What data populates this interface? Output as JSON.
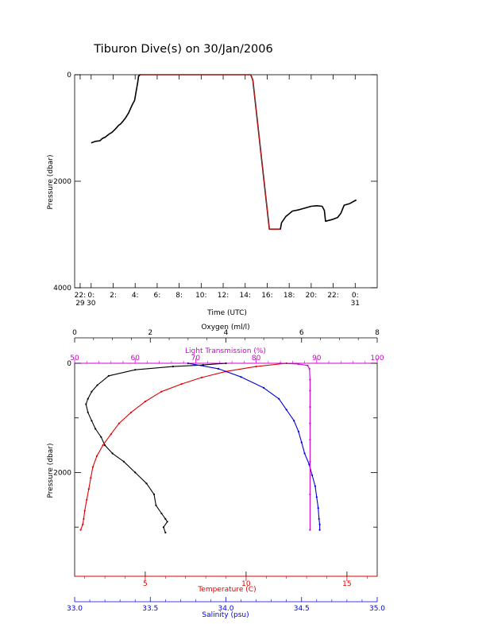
{
  "page": {
    "title": "Tiburon Dive(s) on 30/Jan/2006"
  },
  "colors": {
    "black": "#000000",
    "red": "#e00000",
    "blue": "#0000dd",
    "magenta": "#d000d0",
    "dive_red": "#d02020"
  },
  "chart_data": [
    {
      "type": "line",
      "title": "Tiburon Dive(s) on 30/Jan/2006",
      "xlabel": "Time (UTC)",
      "ylabel": "Pressure (dbar)",
      "xlim": [
        -1.5,
        26.0
      ],
      "ylim": [
        4000,
        0
      ],
      "y_reversed": true,
      "x_ticks": [
        {
          "x": -1,
          "label1": "22:",
          "label2": "29"
        },
        {
          "x": 0,
          "label1": "0:",
          "label2": "30"
        },
        {
          "x": 2,
          "label1": "2:",
          "label2": ""
        },
        {
          "x": 4,
          "label1": "4:",
          "label2": ""
        },
        {
          "x": 6,
          "label1": "6:",
          "label2": ""
        },
        {
          "x": 8,
          "label1": "8:",
          "label2": ""
        },
        {
          "x": 10,
          "label1": "10:",
          "label2": ""
        },
        {
          "x": 12,
          "label1": "12:",
          "label2": ""
        },
        {
          "x": 14,
          "label1": "14:",
          "label2": ""
        },
        {
          "x": 16,
          "label1": "16:",
          "label2": ""
        },
        {
          "x": 18,
          "label1": "18:",
          "label2": ""
        },
        {
          "x": 20,
          "label1": "20:",
          "label2": ""
        },
        {
          "x": 22,
          "label1": "22:",
          "label2": ""
        },
        {
          "x": 24,
          "label1": "0:",
          "label2": "31"
        }
      ],
      "y_ticks": [
        0,
        2000,
        4000
      ],
      "series": [
        {
          "color": "#000000",
          "x": [
            0.0,
            0.4,
            0.8,
            1.0,
            1.3,
            1.6,
            1.9,
            2.2,
            2.5,
            2.7,
            2.9,
            3.1,
            3.4,
            3.7,
            3.95,
            4.1,
            4.25,
            4.3,
            4.45,
            14.5,
            14.7,
            16.2,
            17.2,
            17.3,
            17.7,
            18.0,
            18.3,
            18.8,
            19.5,
            20.0,
            20.5,
            21.0,
            21.2,
            21.3,
            21.9,
            22.4,
            22.7,
            23.0,
            23.5,
            24.1
          ],
          "y": [
            1280,
            1250,
            1240,
            1200,
            1170,
            1120,
            1080,
            1020,
            950,
            920,
            870,
            820,
            720,
            580,
            480,
            300,
            120,
            30,
            0,
            0,
            100,
            2900,
            2900,
            2780,
            2660,
            2610,
            2560,
            2540,
            2500,
            2470,
            2460,
            2470,
            2550,
            2750,
            2720,
            2680,
            2600,
            2450,
            2420,
            2350
          ]
        },
        {
          "color": "#d02020",
          "x": [
            4.45,
            14.5,
            14.7,
            16.2,
            17.2
          ],
          "y": [
            0,
            0,
            100,
            2900,
            2900
          ]
        }
      ]
    },
    {
      "type": "scatter",
      "ylabel": "Pressure (dbar)",
      "ylim": [
        3900,
        0
      ],
      "y_reversed": true,
      "y_ticks": [
        0,
        2000
      ],
      "axes": {
        "oxygen": {
          "label": "Oxygen (ml/l)",
          "range": [
            0,
            8
          ],
          "ticks": [
            0,
            2,
            4,
            6,
            8
          ],
          "color": "#000000",
          "position": "top-outer"
        },
        "light": {
          "label": "Light Transmission (%)",
          "range": [
            50,
            100
          ],
          "ticks": [
            50,
            60,
            70,
            80,
            90,
            100
          ],
          "color": "#d000d0",
          "position": "top-inner"
        },
        "temperature": {
          "label": "Temperature (C)",
          "range": [
            1.5,
            16.5
          ],
          "ticks": [
            5,
            10,
            15
          ],
          "color": "#e00000",
          "position": "bottom-inner"
        },
        "salinity": {
          "label": "Salinity (psu)",
          "range": [
            33.0,
            35.0
          ],
          "ticks": [
            "33.0",
            "33.5",
            "34.0",
            "34.5",
            "35.0"
          ],
          "color": "#0000dd",
          "position": "bottom-outer"
        }
      },
      "series": [
        {
          "axis": "oxygen",
          "color": "#000000",
          "x": [
            4.0,
            3.4,
            2.6,
            1.6,
            0.9,
            0.6,
            0.45,
            0.35,
            0.3,
            0.35,
            0.45,
            0.55,
            0.7,
            0.8,
            1.0,
            1.3,
            1.6,
            1.9,
            2.1,
            2.15,
            2.3,
            2.4,
            2.45,
            2.35,
            2.4
          ],
          "y": [
            0,
            30,
            60,
            120,
            230,
            400,
            520,
            650,
            750,
            900,
            1050,
            1200,
            1350,
            1500,
            1650,
            1800,
            2000,
            2200,
            2400,
            2600,
            2750,
            2850,
            2900,
            3000,
            3100
          ]
        },
        {
          "axis": "temperature",
          "color": "#e00000",
          "x": [
            12.0,
            10.5,
            9.0,
            7.8,
            6.8,
            5.8,
            5.0,
            4.3,
            3.7,
            3.3,
            2.9,
            2.6,
            2.4,
            2.3,
            2.2,
            2.1,
            2.0,
            1.95,
            1.9,
            1.8
          ],
          "y": [
            0,
            60,
            150,
            260,
            380,
            520,
            700,
            900,
            1100,
            1300,
            1500,
            1700,
            1900,
            2100,
            2300,
            2500,
            2700,
            2850,
            2950,
            3050
          ]
        },
        {
          "axis": "salinity",
          "color": "#0000dd",
          "x": [
            33.75,
            33.95,
            34.1,
            34.25,
            34.35,
            34.4,
            34.45,
            34.48,
            34.5,
            34.52,
            34.55,
            34.57,
            34.59,
            34.6,
            34.61,
            34.615,
            34.62,
            34.62
          ],
          "y": [
            0,
            100,
            250,
            450,
            650,
            850,
            1050,
            1250,
            1450,
            1650,
            1850,
            2050,
            2250,
            2450,
            2650,
            2850,
            2950,
            3050
          ]
        },
        {
          "axis": "light",
          "color": "#d000d0",
          "x": [
            84.0,
            87.0,
            88.5,
            88.8,
            88.9,
            88.9,
            88.9,
            88.9,
            88.9,
            88.9,
            88.9,
            88.9
          ],
          "y": [
            0,
            15,
            40,
            100,
            300,
            500,
            800,
            1100,
            1400,
            1800,
            2400,
            3050
          ]
        }
      ]
    }
  ]
}
